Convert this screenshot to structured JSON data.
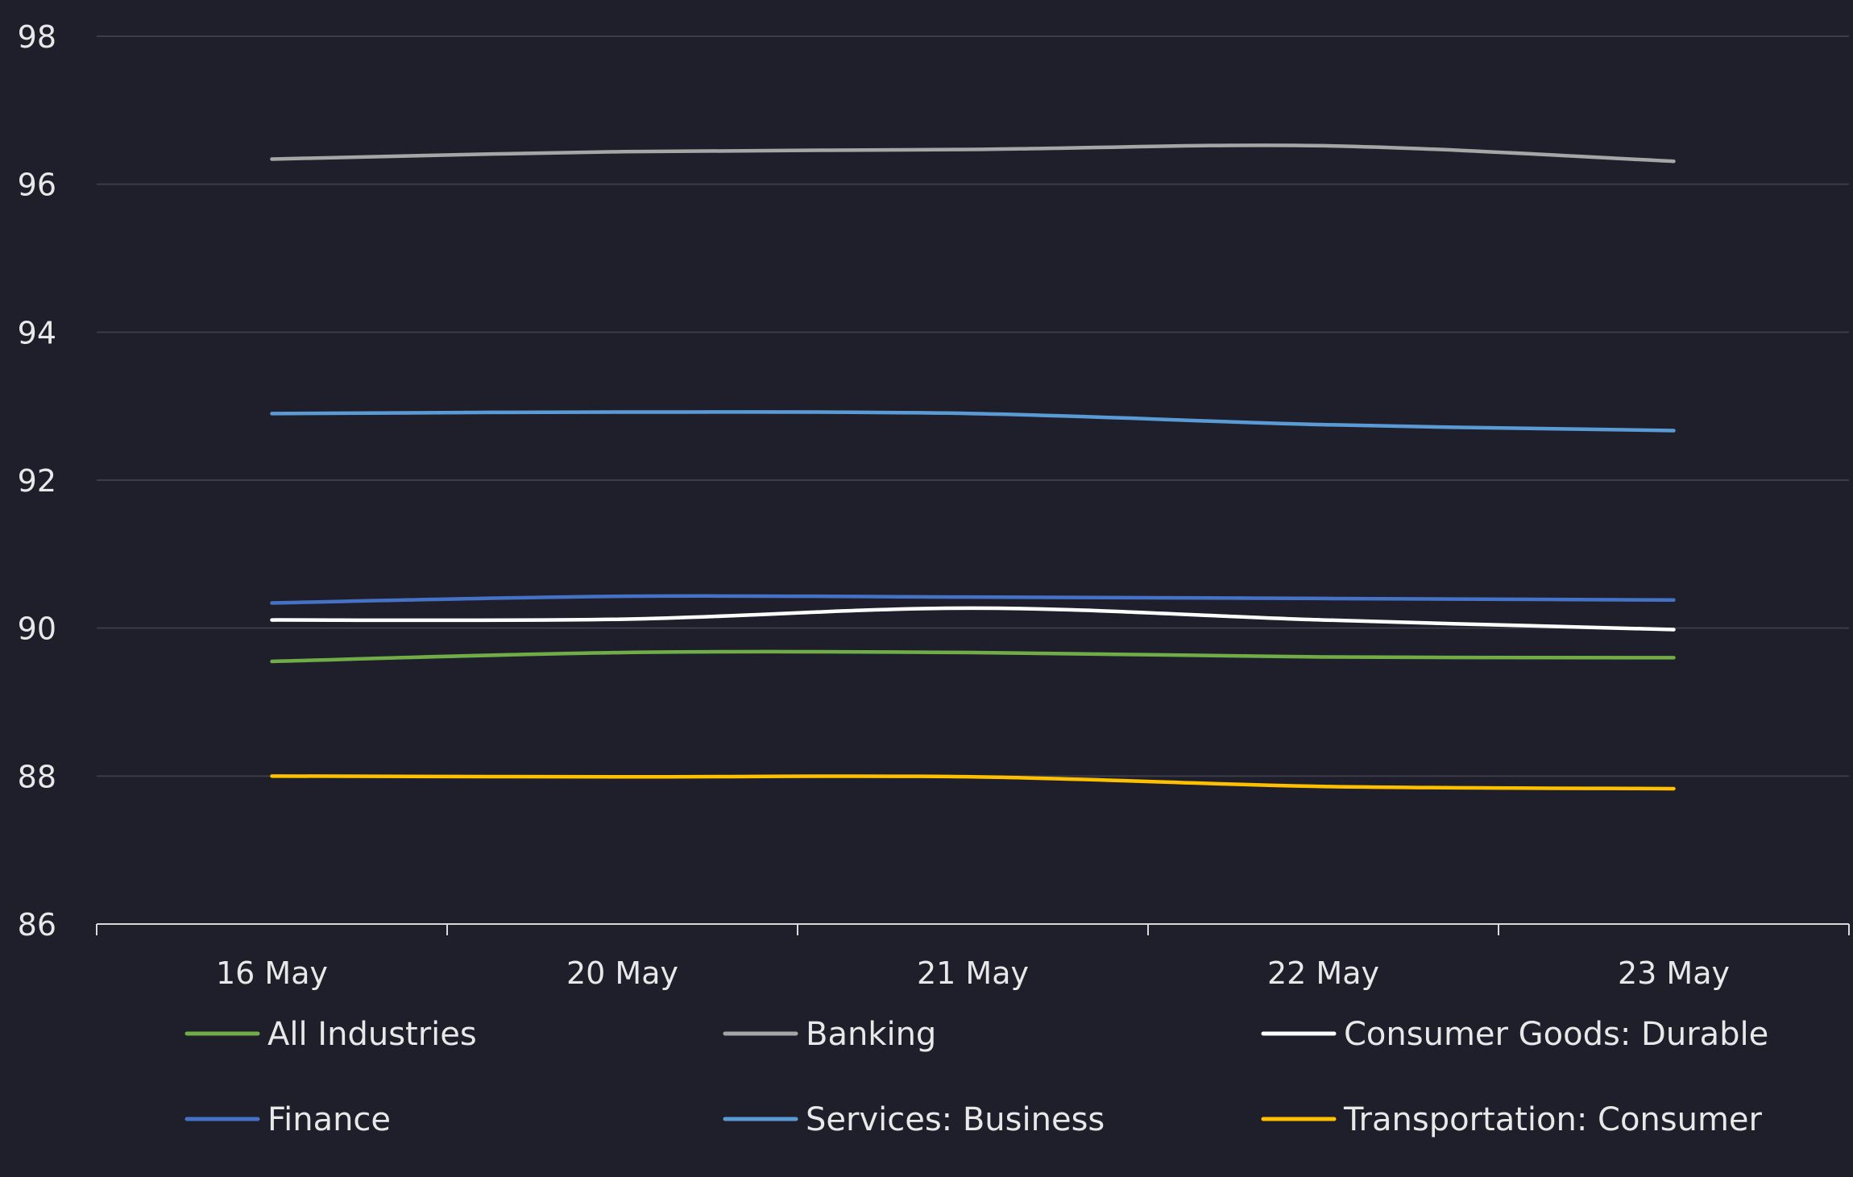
{
  "chart_data": {
    "type": "line",
    "title": "",
    "xlabel": "",
    "ylabel": "",
    "categories": [
      "16 May",
      "20 May",
      "21 May",
      "22 May",
      "23 May"
    ],
    "ylim": [
      86,
      98
    ],
    "yticks": [
      86,
      88,
      90,
      92,
      94,
      96,
      98
    ],
    "grid": true,
    "legend": "bottom",
    "series": [
      {
        "name": "All Industries",
        "color": "#70ad47",
        "values": [
          89.55,
          89.67,
          89.67,
          89.61,
          89.6
        ]
      },
      {
        "name": "Banking",
        "color": "#a6a6a6",
        "values": [
          96.34,
          96.44,
          96.47,
          96.52,
          96.31
        ]
      },
      {
        "name": "Consumer Goods: Durable",
        "color": "#ffffff",
        "values": [
          90.11,
          90.12,
          90.27,
          90.11,
          89.98
        ]
      },
      {
        "name": "Finance",
        "color": "#4472c4",
        "values": [
          90.34,
          90.43,
          90.42,
          90.4,
          90.38
        ]
      },
      {
        "name": "Services: Business",
        "color": "#5b9bd5",
        "values": [
          92.9,
          92.92,
          92.9,
          92.75,
          92.67
        ]
      },
      {
        "name": "Transportation: Consumer",
        "color": "#ffc000",
        "values": [
          88.0,
          87.99,
          87.99,
          87.86,
          87.83
        ]
      }
    ]
  }
}
